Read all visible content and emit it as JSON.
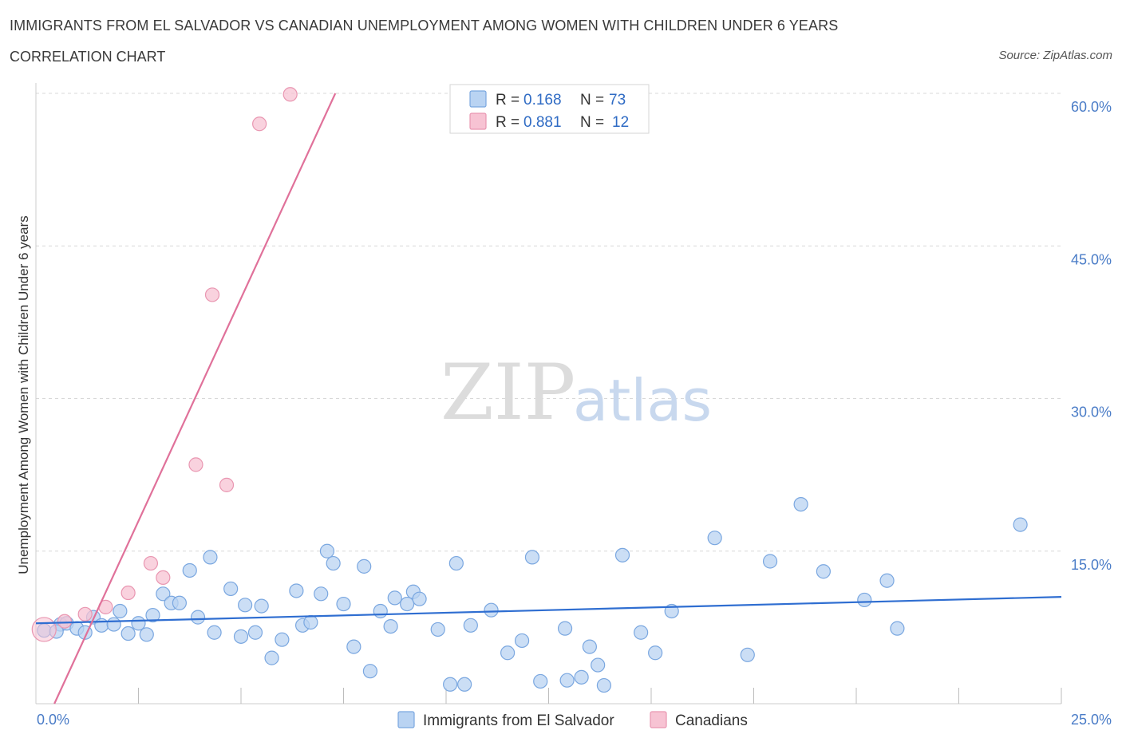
{
  "title": "IMMIGRANTS FROM EL SALVADOR VS CANADIAN UNEMPLOYMENT AMONG WOMEN WITH CHILDREN UNDER 6 YEARS",
  "subtitle": "CORRELATION CHART",
  "source": "Source: ZipAtlas.com",
  "watermark": {
    "zip": "ZIP",
    "atlas": "atlas"
  },
  "colors": {
    "blue_fill": "#b9d3f2",
    "blue_stroke": "#7aa7e0",
    "blue_line": "#2f6ed1",
    "pink_fill": "#f7c3d3",
    "pink_stroke": "#e996b1",
    "pink_line": "#e0719a",
    "grid": "#d8d8d8",
    "tick_text": "#4a7cc7"
  },
  "legend": {
    "rows": [
      {
        "r_label": "R = ",
        "r_value": "0.168",
        "n_label": "N = ",
        "n_value": "73",
        "color": "blue"
      },
      {
        "r_label": "R = ",
        "r_value": "0.881",
        "n_label": "N = ",
        "n_value": "12",
        "color": "pink"
      }
    ],
    "placement": "top-center"
  },
  "bottom_legend": [
    "Immigrants from El Salvador",
    "Canadians"
  ],
  "chart_data": {
    "type": "scatter",
    "title": "IMMIGRANTS FROM EL SALVADOR VS CANADIAN UNEMPLOYMENT AMONG WOMEN WITH CHILDREN UNDER 6 YEARS",
    "xlabel": "",
    "ylabel": "Unemployment Among Women with Children Under 6 years",
    "xlim": [
      0,
      25
    ],
    "ylim": [
      0,
      60
    ],
    "x_tick_labels": [
      {
        "value": 0,
        "label": "0.0%"
      },
      {
        "value": 25,
        "label": "25.0%"
      }
    ],
    "x_minor_ticks": [
      2.5,
      5,
      7.5,
      10,
      12.5,
      15,
      17.5,
      20,
      22.5,
      25
    ],
    "y_ticks": [
      {
        "value": 15,
        "label": "15.0%"
      },
      {
        "value": 30,
        "label": "30.0%"
      },
      {
        "value": 45,
        "label": "45.0%"
      },
      {
        "value": 60,
        "label": "60.0%"
      }
    ],
    "grid": true,
    "legend_placement": "bottom-center",
    "series": [
      {
        "name": "Immigrants from El Salvador",
        "color": "blue",
        "trend": {
          "x": [
            0,
            25
          ],
          "y": [
            7.9,
            10.5
          ]
        },
        "points": [
          [
            0.2,
            7.2
          ],
          [
            0.6,
            7.8
          ],
          [
            0.75,
            7.9
          ],
          [
            1.0,
            7.4
          ],
          [
            1.2,
            7.0
          ],
          [
            1.4,
            8.5
          ],
          [
            1.6,
            7.7
          ],
          [
            1.9,
            7.8
          ],
          [
            2.05,
            9.1
          ],
          [
            2.25,
            6.9
          ],
          [
            2.5,
            7.9
          ],
          [
            2.7,
            6.8
          ],
          [
            2.85,
            8.7
          ],
          [
            3.1,
            10.8
          ],
          [
            3.3,
            9.9
          ],
          [
            3.5,
            9.9
          ],
          [
            3.75,
            13.1
          ],
          [
            3.95,
            8.5
          ],
          [
            4.25,
            14.4
          ],
          [
            4.35,
            7.0
          ],
          [
            4.75,
            11.3
          ],
          [
            5.0,
            6.6
          ],
          [
            5.1,
            9.7
          ],
          [
            5.35,
            7.0
          ],
          [
            5.5,
            9.6
          ],
          [
            5.75,
            4.5
          ],
          [
            6.0,
            6.3
          ],
          [
            6.35,
            11.1
          ],
          [
            6.5,
            7.7
          ],
          [
            6.7,
            8.0
          ],
          [
            6.95,
            10.8
          ],
          [
            7.1,
            15.0
          ],
          [
            7.25,
            13.8
          ],
          [
            7.5,
            9.8
          ],
          [
            7.75,
            5.6
          ],
          [
            8.0,
            13.5
          ],
          [
            8.15,
            3.2
          ],
          [
            8.4,
            9.1
          ],
          [
            8.65,
            7.6
          ],
          [
            8.75,
            10.4
          ],
          [
            9.05,
            9.8
          ],
          [
            9.2,
            11.0
          ],
          [
            9.35,
            10.3
          ],
          [
            9.8,
            7.3
          ],
          [
            10.1,
            1.9
          ],
          [
            10.25,
            13.8
          ],
          [
            10.45,
            1.9
          ],
          [
            10.6,
            7.7
          ],
          [
            11.1,
            9.2
          ],
          [
            11.5,
            5.0
          ],
          [
            11.85,
            6.2
          ],
          [
            12.1,
            14.4
          ],
          [
            12.3,
            2.2
          ],
          [
            12.9,
            7.4
          ],
          [
            12.95,
            2.3
          ],
          [
            13.3,
            2.6
          ],
          [
            13.5,
            5.6
          ],
          [
            13.7,
            3.8
          ],
          [
            13.85,
            1.8
          ],
          [
            14.3,
            14.6
          ],
          [
            14.75,
            7.0
          ],
          [
            15.1,
            5.0
          ],
          [
            15.5,
            9.1
          ],
          [
            16.55,
            16.3
          ],
          [
            17.35,
            4.8
          ],
          [
            17.9,
            14.0
          ],
          [
            18.65,
            19.6
          ],
          [
            19.2,
            13.0
          ],
          [
            20.2,
            10.2
          ],
          [
            20.75,
            12.1
          ],
          [
            21.0,
            7.4
          ],
          [
            24.0,
            17.6
          ],
          [
            0.5,
            7.1
          ]
        ]
      },
      {
        "name": "Canadians",
        "color": "pink",
        "trend": {
          "x": [
            0.45,
            7.3
          ],
          "y": [
            0,
            60
          ]
        },
        "points": [
          [
            0.2,
            7.3
          ],
          [
            0.7,
            8.1
          ],
          [
            1.2,
            8.8
          ],
          [
            1.7,
            9.5
          ],
          [
            2.25,
            10.9
          ],
          [
            2.8,
            13.8
          ],
          [
            3.1,
            12.4
          ],
          [
            3.9,
            23.5
          ],
          [
            4.3,
            40.2
          ],
          [
            4.65,
            21.5
          ],
          [
            5.45,
            57.0
          ],
          [
            6.2,
            59.9
          ]
        ]
      }
    ]
  }
}
